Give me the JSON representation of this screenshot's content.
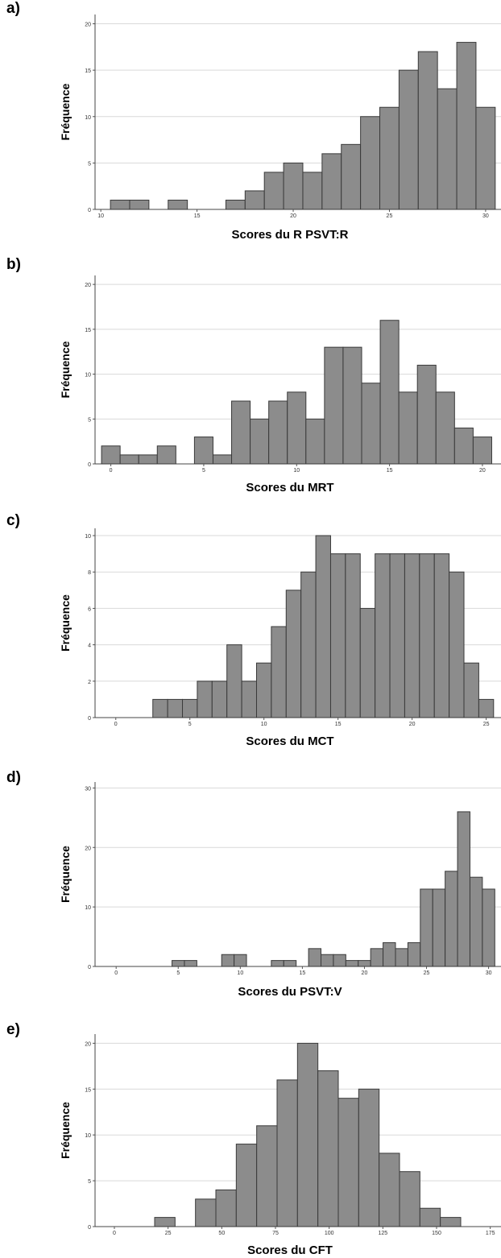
{
  "chart_data": [
    {
      "type": "bar",
      "panel_label": "a)",
      "ylabel": "Fréquence",
      "xlabel": "Scores du R PSVT:R",
      "xlim": [
        9.7,
        30.8
      ],
      "ylim": [
        0,
        21
      ],
      "xticks": [
        10,
        15,
        20,
        25,
        30
      ],
      "yticks": [
        0,
        5,
        10,
        15,
        20
      ],
      "bin_width": 1,
      "bins": [
        {
          "x": 11,
          "y": 1
        },
        {
          "x": 12,
          "y": 1
        },
        {
          "x": 14,
          "y": 1
        },
        {
          "x": 17,
          "y": 1
        },
        {
          "x": 18,
          "y": 2
        },
        {
          "x": 19,
          "y": 4
        },
        {
          "x": 20,
          "y": 5
        },
        {
          "x": 21,
          "y": 4
        },
        {
          "x": 22,
          "y": 6
        },
        {
          "x": 23,
          "y": 7
        },
        {
          "x": 24,
          "y": 10
        },
        {
          "x": 25,
          "y": 11
        },
        {
          "x": 26,
          "y": 15
        },
        {
          "x": 27,
          "y": 17
        },
        {
          "x": 28,
          "y": 13
        },
        {
          "x": 29,
          "y": 18
        },
        {
          "x": 30,
          "y": 11
        }
      ]
    },
    {
      "type": "bar",
      "panel_label": "b)",
      "ylabel": "Fréquence",
      "xlabel": "Scores du MRT",
      "xlim": [
        -0.85,
        21
      ],
      "ylim": [
        0,
        21
      ],
      "xticks": [
        0,
        5,
        10,
        15,
        20
      ],
      "yticks": [
        0,
        5,
        10,
        15,
        20
      ],
      "bin_width": 1,
      "bins": [
        {
          "x": 0,
          "y": 2
        },
        {
          "x": 1,
          "y": 1
        },
        {
          "x": 2,
          "y": 1
        },
        {
          "x": 3,
          "y": 2
        },
        {
          "x": 5,
          "y": 3
        },
        {
          "x": 6,
          "y": 1
        },
        {
          "x": 7,
          "y": 7
        },
        {
          "x": 8,
          "y": 5
        },
        {
          "x": 9,
          "y": 7
        },
        {
          "x": 10,
          "y": 8
        },
        {
          "x": 11,
          "y": 5
        },
        {
          "x": 12,
          "y": 13
        },
        {
          "x": 13,
          "y": 13
        },
        {
          "x": 14,
          "y": 9
        },
        {
          "x": 15,
          "y": 16
        },
        {
          "x": 16,
          "y": 8
        },
        {
          "x": 17,
          "y": 11
        },
        {
          "x": 18,
          "y": 8
        },
        {
          "x": 19,
          "y": 4
        },
        {
          "x": 20,
          "y": 3
        }
      ]
    },
    {
      "type": "bar",
      "panel_label": "c)",
      "ylabel": "Fréquence",
      "xlabel": "Scores du MCT",
      "xlim": [
        -1.4,
        26
      ],
      "ylim": [
        0,
        10.4
      ],
      "xticks": [
        0,
        5,
        10,
        15,
        20,
        25
      ],
      "yticks": [
        0,
        2,
        4,
        6,
        8,
        10
      ],
      "bin_width": 1,
      "bins": [
        {
          "x": 3,
          "y": 1
        },
        {
          "x": 4,
          "y": 1
        },
        {
          "x": 5,
          "y": 1
        },
        {
          "x": 6,
          "y": 2
        },
        {
          "x": 7,
          "y": 2
        },
        {
          "x": 8,
          "y": 4
        },
        {
          "x": 9,
          "y": 2
        },
        {
          "x": 10,
          "y": 3
        },
        {
          "x": 11,
          "y": 5
        },
        {
          "x": 12,
          "y": 7
        },
        {
          "x": 13,
          "y": 8
        },
        {
          "x": 14,
          "y": 10
        },
        {
          "x": 15,
          "y": 9
        },
        {
          "x": 16,
          "y": 9
        },
        {
          "x": 17,
          "y": 6
        },
        {
          "x": 18,
          "y": 9
        },
        {
          "x": 19,
          "y": 9
        },
        {
          "x": 20,
          "y": 9
        },
        {
          "x": 21,
          "y": 9
        },
        {
          "x": 22,
          "y": 9
        },
        {
          "x": 23,
          "y": 8
        },
        {
          "x": 24,
          "y": 3
        },
        {
          "x": 25,
          "y": 1
        }
      ]
    },
    {
      "type": "bar",
      "panel_label": "d)",
      "ylabel": "Fréquence",
      "xlabel": "Scores du PSVT:V",
      "xlim": [
        -1.7,
        31
      ],
      "ylim": [
        0,
        31
      ],
      "xticks": [
        0,
        5,
        10,
        15,
        20,
        25,
        30
      ],
      "yticks": [
        0,
        10,
        20,
        30
      ],
      "bin_width": 1,
      "bins": [
        {
          "x": 5,
          "y": 1
        },
        {
          "x": 6,
          "y": 1
        },
        {
          "x": 9,
          "y": 2
        },
        {
          "x": 10,
          "y": 2
        },
        {
          "x": 13,
          "y": 1
        },
        {
          "x": 14,
          "y": 1
        },
        {
          "x": 16,
          "y": 3
        },
        {
          "x": 17,
          "y": 2
        },
        {
          "x": 18,
          "y": 2
        },
        {
          "x": 19,
          "y": 1
        },
        {
          "x": 20,
          "y": 1
        },
        {
          "x": 21,
          "y": 3
        },
        {
          "x": 22,
          "y": 4
        },
        {
          "x": 23,
          "y": 3
        },
        {
          "x": 24,
          "y": 4
        },
        {
          "x": 25,
          "y": 13
        },
        {
          "x": 26,
          "y": 13
        },
        {
          "x": 27,
          "y": 16
        },
        {
          "x": 28,
          "y": 26
        },
        {
          "x": 29,
          "y": 15
        },
        {
          "x": 30,
          "y": 13
        }
      ]
    },
    {
      "type": "bar",
      "panel_label": "e)",
      "ylabel": "Fréquence",
      "xlabel": "Scores du CFT",
      "xlim": [
        -9,
        180
      ],
      "ylim": [
        0,
        21
      ],
      "xticks": [
        0,
        25,
        50,
        75,
        100,
        125,
        150,
        175
      ],
      "yticks": [
        0,
        5,
        10,
        15,
        20
      ],
      "bin_width": 9.5,
      "bins": [
        {
          "x": 23.5,
          "y": 1
        },
        {
          "x": 42.5,
          "y": 3
        },
        {
          "x": 52,
          "y": 4
        },
        {
          "x": 61.5,
          "y": 9
        },
        {
          "x": 71,
          "y": 11
        },
        {
          "x": 80.5,
          "y": 16
        },
        {
          "x": 90,
          "y": 20
        },
        {
          "x": 99.5,
          "y": 17
        },
        {
          "x": 109,
          "y": 14
        },
        {
          "x": 118.5,
          "y": 15
        },
        {
          "x": 128,
          "y": 8
        },
        {
          "x": 137.5,
          "y": 6
        },
        {
          "x": 147,
          "y": 2
        },
        {
          "x": 156.5,
          "y": 1
        }
      ]
    }
  ]
}
